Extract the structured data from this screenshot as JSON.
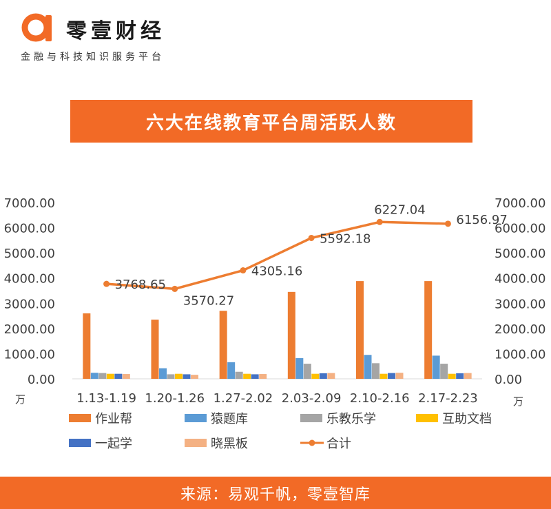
{
  "brand": {
    "name": "零壹财经",
    "tagline": "金融与科技知识服务平台",
    "accent_color": "#f26a26",
    "logo_icon": "alpha-logo-icon"
  },
  "title": "六大在线教育平台周活跃人数",
  "footer": {
    "source": "来源：易观千帆，零壹智库"
  },
  "chart_data": {
    "type": "bar",
    "title": "六大在线教育平台周活跃人数",
    "unit_label": "万",
    "categories": [
      "1.13-1.19",
      "1.20-1.26",
      "1.27-2.02",
      "2.03-2.09",
      "2.10-2.16",
      "2.17-2.23"
    ],
    "y_ticks": [
      "0.00",
      "1000.00",
      "2000.00",
      "3000.00",
      "4000.00",
      "5000.00",
      "6000.00",
      "7000.00"
    ],
    "ylim": [
      0,
      7000
    ],
    "grid": false,
    "legend_position": "bottom",
    "series": [
      {
        "name": "作业帮",
        "kind": "bar",
        "color": "#ed7d31",
        "values": [
          2600,
          2350,
          2700,
          3450,
          3880,
          3880
        ]
      },
      {
        "name": "猿题库",
        "kind": "bar",
        "color": "#5b9bd5",
        "values": [
          240,
          420,
          660,
          820,
          950,
          920
        ]
      },
      {
        "name": "乐教乐学",
        "kind": "bar",
        "color": "#a5a5a5",
        "values": [
          230,
          180,
          280,
          600,
          620,
          600
        ]
      },
      {
        "name": "互助文档",
        "kind": "bar",
        "color": "#ffc000",
        "values": [
          200,
          200,
          200,
          200,
          200,
          200
        ]
      },
      {
        "name": "一起学",
        "kind": "bar",
        "color": "#4472c4",
        "values": [
          200,
          180,
          180,
          220,
          230,
          220
        ]
      },
      {
        "name": "晓黑板",
        "kind": "bar",
        "color": "#f4b183",
        "values": [
          190,
          160,
          190,
          230,
          240,
          230
        ]
      },
      {
        "name": "合计",
        "kind": "line",
        "color": "#ed7d31",
        "values": [
          3768.65,
          3570.27,
          4305.16,
          5592.18,
          6227.04,
          6156.97
        ],
        "labels": [
          "3768.65",
          "3570.27",
          "4305.16",
          "5592.18",
          "6227.04",
          "6156.97"
        ]
      }
    ]
  }
}
